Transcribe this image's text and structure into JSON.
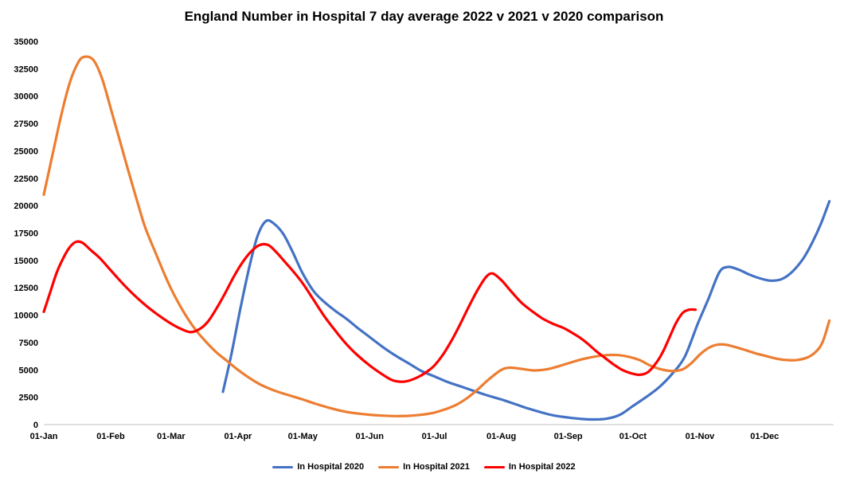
{
  "chart_data": {
    "type": "line",
    "title": "England Number in Hospital 7 day average 2022 v 2021 v 2020 comparison",
    "xlabel": "",
    "ylabel": "",
    "ylim": [
      0,
      35000
    ],
    "y_tick_step": 2500,
    "x_range_days": [
      0,
      366
    ],
    "x_tick_days": [
      0,
      31,
      59,
      90,
      120,
      151,
      181,
      212,
      243,
      273,
      304,
      334
    ],
    "x_tick_labels": [
      "01-Jan",
      "01-Feb",
      "01-Mar",
      "01-Apr",
      "01-May",
      "01-Jun",
      "01-Jul",
      "01-Aug",
      "01-Sep",
      "01-Oct",
      "01-Nov",
      "01-Dec"
    ],
    "grid": false,
    "legend_position": "bottom",
    "colors": {
      "axis_line": "#bfbfbf",
      "text": "#000000"
    },
    "series": [
      {
        "name": "In Hospital 2020",
        "color": "#4472C4",
        "points": [
          [
            83,
            3000
          ],
          [
            87,
            6500
          ],
          [
            91,
            10500
          ],
          [
            95,
            14200
          ],
          [
            99,
            17200
          ],
          [
            103,
            18600
          ],
          [
            107,
            18300
          ],
          [
            111,
            17400
          ],
          [
            115,
            15900
          ],
          [
            120,
            13800
          ],
          [
            125,
            12200
          ],
          [
            130,
            11200
          ],
          [
            135,
            10400
          ],
          [
            140,
            9700
          ],
          [
            145,
            8900
          ],
          [
            151,
            8000
          ],
          [
            157,
            7100
          ],
          [
            163,
            6300
          ],
          [
            169,
            5600
          ],
          [
            175,
            4900
          ],
          [
            181,
            4400
          ],
          [
            187,
            3900
          ],
          [
            193,
            3500
          ],
          [
            199,
            3100
          ],
          [
            205,
            2700
          ],
          [
            212,
            2300
          ],
          [
            218,
            1900
          ],
          [
            224,
            1500
          ],
          [
            230,
            1150
          ],
          [
            236,
            850
          ],
          [
            243,
            650
          ],
          [
            249,
            520
          ],
          [
            255,
            470
          ],
          [
            261,
            550
          ],
          [
            267,
            900
          ],
          [
            273,
            1700
          ],
          [
            279,
            2500
          ],
          [
            285,
            3400
          ],
          [
            291,
            4600
          ],
          [
            297,
            6200
          ],
          [
            303,
            9200
          ],
          [
            308,
            11500
          ],
          [
            313,
            13900
          ],
          [
            317,
            14400
          ],
          [
            322,
            14150
          ],
          [
            327,
            13700
          ],
          [
            332,
            13350
          ],
          [
            337,
            13150
          ],
          [
            342,
            13300
          ],
          [
            347,
            14000
          ],
          [
            352,
            15200
          ],
          [
            356,
            16600
          ],
          [
            360,
            18300
          ],
          [
            364,
            20400
          ]
        ]
      },
      {
        "name": "In Hospital 2021",
        "color": "#ED7D31",
        "points": [
          [
            0,
            21000
          ],
          [
            4,
            24600
          ],
          [
            8,
            28200
          ],
          [
            12,
            31200
          ],
          [
            16,
            33100
          ],
          [
            19,
            33600
          ],
          [
            23,
            33300
          ],
          [
            27,
            31600
          ],
          [
            31,
            28900
          ],
          [
            35,
            26100
          ],
          [
            39,
            23300
          ],
          [
            43,
            20600
          ],
          [
            47,
            18000
          ],
          [
            52,
            15600
          ],
          [
            56,
            13700
          ],
          [
            59,
            12400
          ],
          [
            63,
            10900
          ],
          [
            67,
            9600
          ],
          [
            71,
            8500
          ],
          [
            75,
            7600
          ],
          [
            80,
            6600
          ],
          [
            85,
            5800
          ],
          [
            90,
            5000
          ],
          [
            95,
            4300
          ],
          [
            100,
            3700
          ],
          [
            105,
            3250
          ],
          [
            110,
            2900
          ],
          [
            115,
            2600
          ],
          [
            120,
            2300
          ],
          [
            126,
            1900
          ],
          [
            132,
            1550
          ],
          [
            138,
            1250
          ],
          [
            144,
            1050
          ],
          [
            151,
            900
          ],
          [
            157,
            820
          ],
          [
            163,
            780
          ],
          [
            169,
            800
          ],
          [
            175,
            900
          ],
          [
            181,
            1100
          ],
          [
            186,
            1400
          ],
          [
            191,
            1800
          ],
          [
            196,
            2400
          ],
          [
            201,
            3200
          ],
          [
            206,
            4100
          ],
          [
            212,
            5000
          ],
          [
            216,
            5200
          ],
          [
            221,
            5100
          ],
          [
            227,
            4950
          ],
          [
            233,
            5050
          ],
          [
            238,
            5300
          ],
          [
            243,
            5600
          ],
          [
            249,
            5950
          ],
          [
            255,
            6200
          ],
          [
            261,
            6350
          ],
          [
            266,
            6350
          ],
          [
            271,
            6200
          ],
          [
            276,
            5900
          ],
          [
            281,
            5400
          ],
          [
            286,
            5050
          ],
          [
            291,
            4900
          ],
          [
            296,
            5050
          ],
          [
            300,
            5600
          ],
          [
            304,
            6400
          ],
          [
            308,
            7000
          ],
          [
            312,
            7300
          ],
          [
            316,
            7300
          ],
          [
            321,
            7050
          ],
          [
            326,
            6750
          ],
          [
            330,
            6500
          ],
          [
            334,
            6300
          ],
          [
            339,
            6050
          ],
          [
            344,
            5900
          ],
          [
            349,
            5900
          ],
          [
            354,
            6150
          ],
          [
            358,
            6700
          ],
          [
            361,
            7600
          ],
          [
            364,
            9500
          ]
        ]
      },
      {
        "name": "In Hospital 2022",
        "color": "#FF0000",
        "points": [
          [
            0,
            10300
          ],
          [
            3,
            12100
          ],
          [
            6,
            13900
          ],
          [
            9,
            15200
          ],
          [
            12,
            16200
          ],
          [
            15,
            16700
          ],
          [
            18,
            16600
          ],
          [
            22,
            15900
          ],
          [
            26,
            15200
          ],
          [
            31,
            14100
          ],
          [
            36,
            13000
          ],
          [
            41,
            12000
          ],
          [
            46,
            11100
          ],
          [
            51,
            10300
          ],
          [
            56,
            9600
          ],
          [
            60,
            9100
          ],
          [
            64,
            8700
          ],
          [
            68,
            8450
          ],
          [
            72,
            8700
          ],
          [
            76,
            9400
          ],
          [
            80,
            10600
          ],
          [
            84,
            12000
          ],
          [
            88,
            13500
          ],
          [
            92,
            14800
          ],
          [
            96,
            15800
          ],
          [
            100,
            16400
          ],
          [
            104,
            16400
          ],
          [
            108,
            15700
          ],
          [
            112,
            14800
          ],
          [
            116,
            13900
          ],
          [
            120,
            12900
          ],
          [
            125,
            11400
          ],
          [
            130,
            9900
          ],
          [
            135,
            8600
          ],
          [
            140,
            7400
          ],
          [
            145,
            6400
          ],
          [
            151,
            5400
          ],
          [
            156,
            4700
          ],
          [
            161,
            4100
          ],
          [
            165,
            3920
          ],
          [
            169,
            4000
          ],
          [
            174,
            4400
          ],
          [
            178,
            4900
          ],
          [
            181,
            5400
          ],
          [
            185,
            6400
          ],
          [
            189,
            7700
          ],
          [
            193,
            9200
          ],
          [
            197,
            10800
          ],
          [
            201,
            12300
          ],
          [
            205,
            13500
          ],
          [
            208,
            13800
          ],
          [
            212,
            13200
          ],
          [
            216,
            12300
          ],
          [
            221,
            11200
          ],
          [
            226,
            10400
          ],
          [
            231,
            9700
          ],
          [
            236,
            9200
          ],
          [
            240,
            8900
          ],
          [
            243,
            8600
          ],
          [
            248,
            8000
          ],
          [
            252,
            7400
          ],
          [
            256,
            6700
          ],
          [
            260,
            6100
          ],
          [
            264,
            5500
          ],
          [
            268,
            5000
          ],
          [
            272,
            4700
          ],
          [
            276,
            4550
          ],
          [
            280,
            4800
          ],
          [
            284,
            5700
          ],
          [
            287,
            6700
          ],
          [
            290,
            8000
          ],
          [
            293,
            9300
          ],
          [
            296,
            10200
          ],
          [
            299,
            10500
          ],
          [
            302,
            10500
          ]
        ]
      }
    ]
  }
}
